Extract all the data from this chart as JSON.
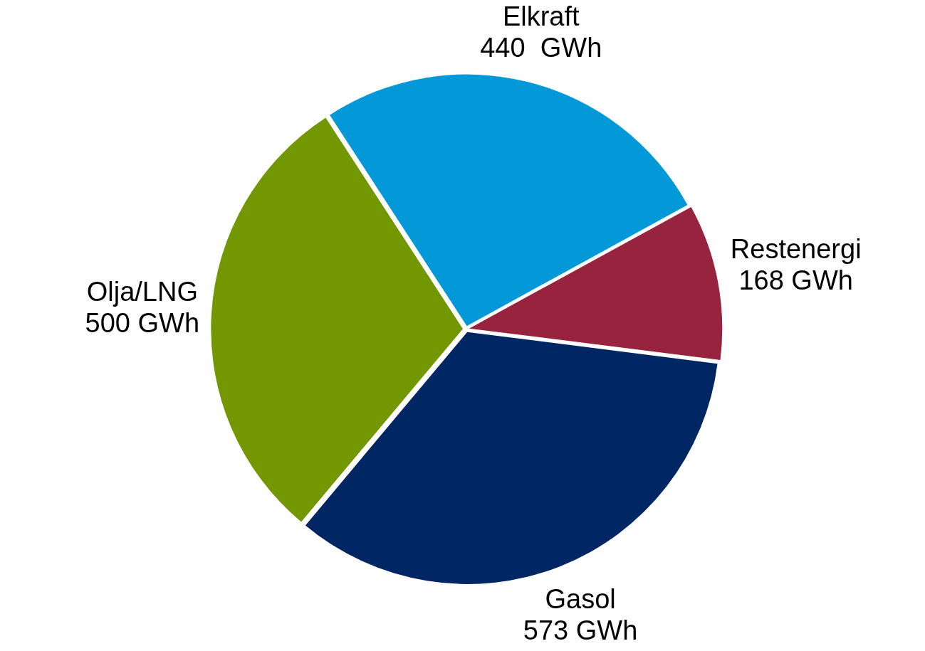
{
  "chart_data": {
    "type": "pie",
    "categories": [
      "Elkraft",
      "Restenergi",
      "Gasol",
      "Olja/LNG"
    ],
    "values": [
      440,
      168,
      573,
      500
    ],
    "colors": [
      "#0399d9",
      "#98233f",
      "#002663",
      "#739700"
    ],
    "value_labels": [
      "440  GWh",
      "168 GWh",
      "573 GWh",
      "500 GWh"
    ]
  }
}
